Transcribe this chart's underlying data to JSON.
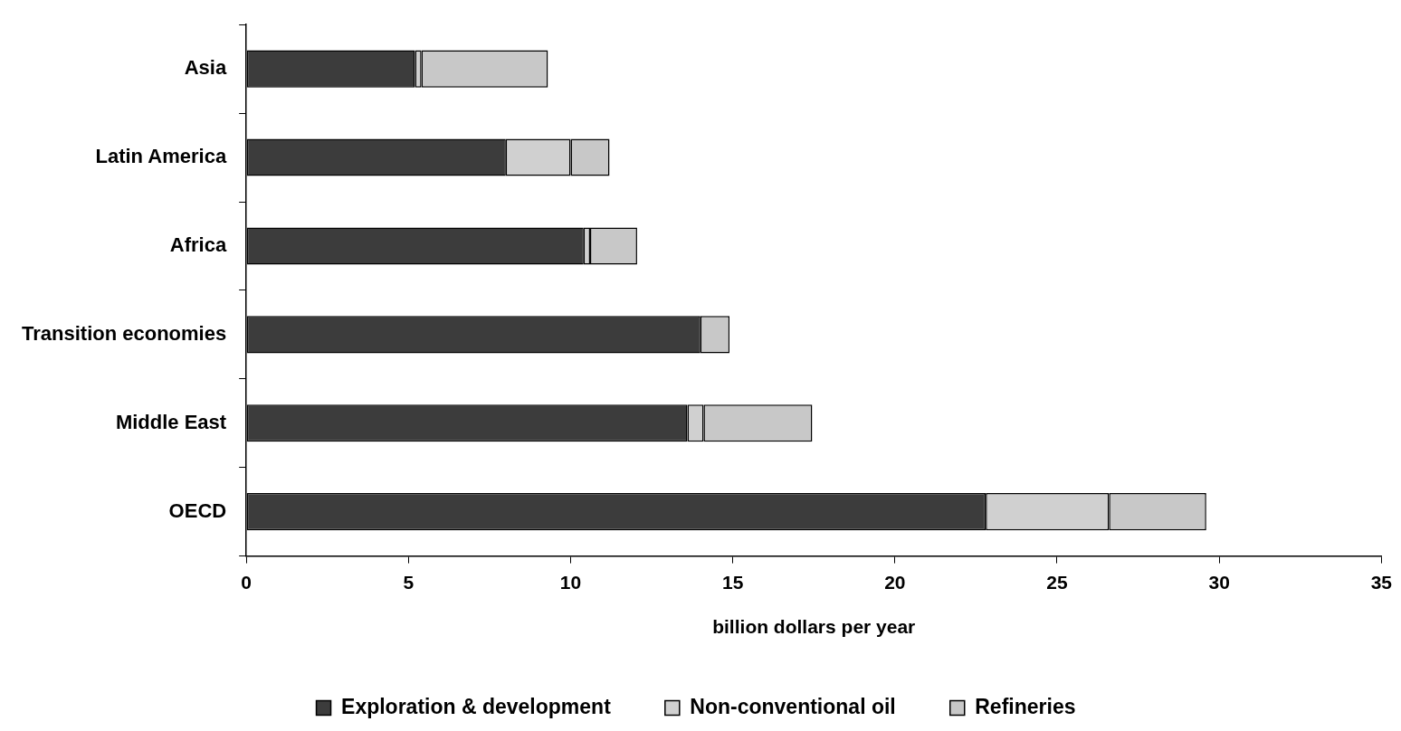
{
  "chart_data": {
    "type": "bar",
    "orientation": "horizontal",
    "stacked": true,
    "xlabel": "billion dollars per year",
    "categories": [
      "Asia",
      "Latin America",
      "Africa",
      "Transition economies",
      "Middle East",
      "OECD"
    ],
    "series": [
      {
        "name": "Exploration & development",
        "color": "#3c3c3c",
        "values": [
          5.2,
          8.0,
          10.4,
          14.0,
          13.6,
          22.8
        ]
      },
      {
        "name": "Non-conventional oil",
        "color": "#d0d0d0",
        "values": [
          0.2,
          2.0,
          0.2,
          0,
          0.5,
          3.8
        ]
      },
      {
        "name": "Refineries",
        "color": "#c8c8c8",
        "values": [
          3.9,
          1.2,
          1.45,
          0.9,
          3.35,
          3.0
        ]
      }
    ],
    "xlim": [
      0,
      35
    ],
    "xticks": [
      0,
      5,
      10,
      15,
      20,
      25,
      30,
      35
    ],
    "grid": false,
    "legend": "bottom"
  }
}
